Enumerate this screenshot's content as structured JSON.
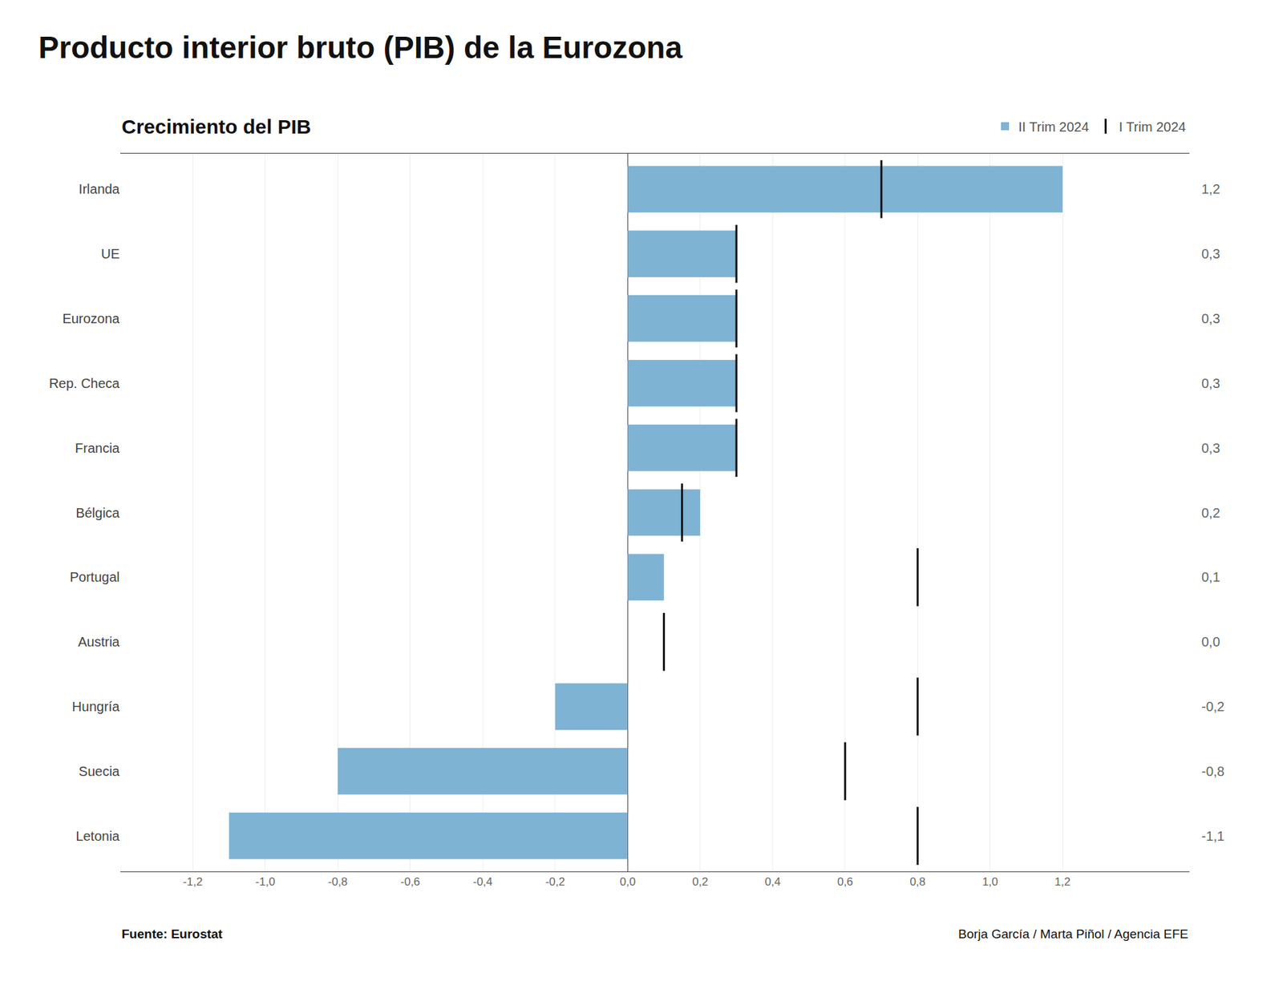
{
  "chart_data": {
    "type": "bar",
    "orientation": "horizontal",
    "title": "Producto interior bruto (PIB) de la Eurozona",
    "subtitle": "Crecimiento del PIB",
    "annotations": [
      "Fuente: Eurostat",
      "Borja García / Marta Piñol / Agencia EFE"
    ],
    "categories": [
      "Irlanda",
      "UE",
      "Eurozona",
      "Rep. Checa",
      "Francia",
      "Bélgica",
      "Portugal",
      "Austria",
      "Hungría",
      "Suecia",
      "Letonia"
    ],
    "series": [
      {
        "name": "II Trim 2024",
        "type": "bar",
        "color": "#7fb3d3",
        "values": [
          1.2,
          0.3,
          0.3,
          0.3,
          0.3,
          0.2,
          0.1,
          0.0,
          -0.2,
          -0.8,
          -1.1
        ],
        "value_labels": [
          "1,2",
          "0,3",
          "0,3",
          "0,3",
          "0,3",
          "0,2",
          "0,1",
          "0,0",
          "-0,2",
          "-0,8",
          "-1,1"
        ]
      },
      {
        "name": "I Trim 2024",
        "type": "scatter",
        "marker": "line",
        "color": "#111111",
        "values": [
          0.7,
          0.3,
          0.3,
          0.3,
          0.3,
          0.15,
          0.8,
          0.1,
          0.8,
          0.6,
          0.8
        ]
      }
    ],
    "xlim": [
      -1.4,
      1.55
    ],
    "xticks": [
      {
        "value": -1.2,
        "label": "-1,2"
      },
      {
        "value": -1.0,
        "label": "-1,0"
      },
      {
        "value": -0.8,
        "label": "-0,8"
      },
      {
        "value": -0.6,
        "label": "-0,6"
      },
      {
        "value": -0.4,
        "label": "-0,4"
      },
      {
        "value": -0.2,
        "label": "-0,2"
      },
      {
        "value": 0.0,
        "label": "0,0"
      },
      {
        "value": 0.2,
        "label": "0,2"
      },
      {
        "value": 0.4,
        "label": "0,4"
      },
      {
        "value": 0.6,
        "label": "0,6"
      },
      {
        "value": 0.8,
        "label": "0,8"
      },
      {
        "value": 1.0,
        "label": "1,0"
      },
      {
        "value": 1.2,
        "label": "1,2"
      }
    ],
    "grid": true,
    "data_labels": true,
    "legend": "top right"
  }
}
